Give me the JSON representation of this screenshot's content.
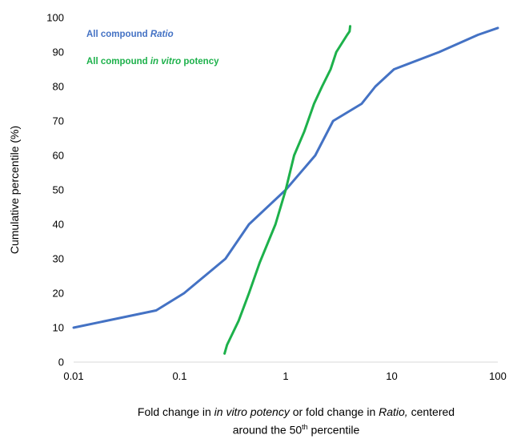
{
  "chart_data": {
    "type": "line",
    "xscale": "log",
    "xlim": [
      0.01,
      100
    ],
    "ylim": [
      0,
      100
    ],
    "x_ticks": [
      "0.01",
      "0.1",
      "1",
      "10",
      "100"
    ],
    "y_ticks": [
      "0",
      "10",
      "20",
      "30",
      "40",
      "50",
      "60",
      "70",
      "80",
      "90",
      "100"
    ],
    "ylabel": "Cumulative percentile (%)",
    "xlabel": {
      "part1": "Fold change in ",
      "part2": "in vitro potency",
      "part3": " or fold change in ",
      "part4": "Ratio,",
      "part5": " centered",
      "line2_a": "around the 50",
      "line2_sup": "th",
      "line2_b": " percentile"
    },
    "grid": false,
    "legend_position": "top-left",
    "series": [
      {
        "name": "All compound Ratio",
        "legend_plain": "All compound ",
        "legend_italic": "Ratio",
        "legend_after": "",
        "color": "#4472C4",
        "x": [
          0.01,
          0.06,
          0.11,
          0.27,
          0.45,
          1.0,
          1.9,
          2.8,
          5.2,
          7.0,
          10.5,
          28,
          65,
          100
        ],
        "y": [
          10,
          15,
          20,
          30,
          40,
          50,
          60,
          70,
          75,
          80,
          85,
          90,
          95,
          97
        ]
      },
      {
        "name": "All compound in vitro potency",
        "legend_plain": "All compound ",
        "legend_italic": "in vitro",
        "legend_after": " potency",
        "color": "#1DB14B",
        "x": [
          0.265,
          0.28,
          0.36,
          0.45,
          0.57,
          0.8,
          1.0,
          1.2,
          1.5,
          1.85,
          2.2,
          2.65,
          3.0,
          3.8,
          4.0,
          4.05
        ],
        "y": [
          2.5,
          5,
          12,
          20,
          29,
          40,
          50,
          60,
          67,
          75,
          80,
          85,
          90,
          95,
          96,
          97.5
        ]
      }
    ]
  }
}
